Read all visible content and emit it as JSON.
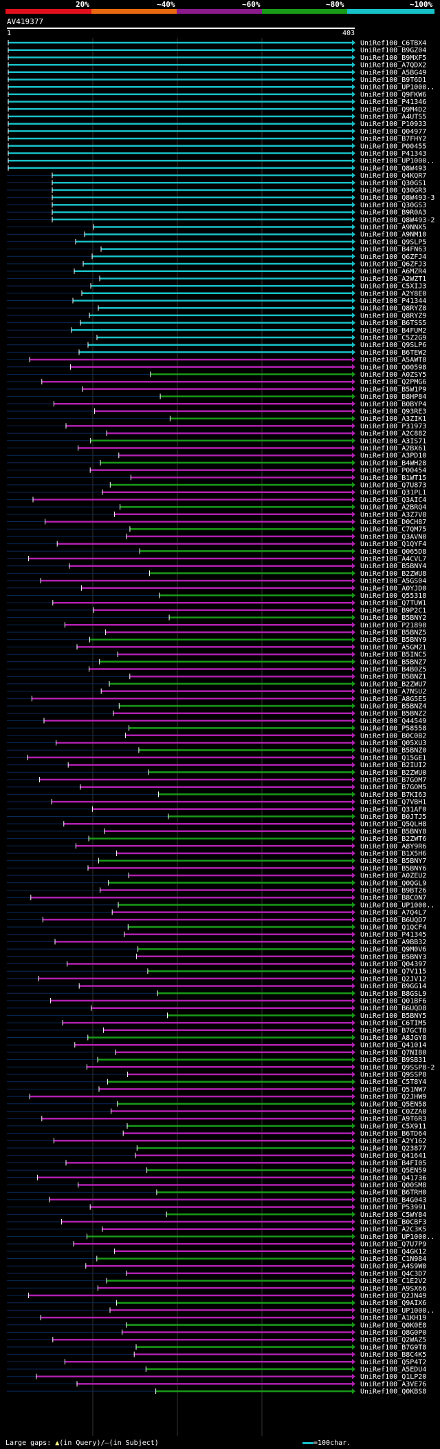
{
  "query": {
    "id": "AV419377",
    "start": "1",
    "end": "403"
  },
  "legend": {
    "labels": [
      "20%",
      "~40%",
      "~60%",
      "~80%",
      "~100%"
    ],
    "colors": [
      "#e0101c",
      "#e86810",
      "#8b1a8b",
      "#189a18",
      "#18c0c8"
    ]
  },
  "footer": {
    "large_gaps": "Large gaps: ",
    "in_query": "(in Query)/",
    "dash": "—",
    "in_subject": "(in Subject)",
    "scale": "=100char."
  },
  "hits": [
    "UniRef100_C6TBX4",
    "UniRef100_B9GZ04",
    "UniRef100_B9MXF5",
    "UniRef100_A7QDX2",
    "UniRef100_A5BG49",
    "UniRef100_B9T6D1",
    "UniRef100_UP1000..",
    "UniRef100_Q9FKW6",
    "UniRef100_P41346",
    "UniRef100_Q9M4D2",
    "UniRef100_A4UTS5",
    "UniRef100_P10933",
    "UniRef100_Q04977",
    "UniRef100_B7FHY2",
    "UniRef100_P00455",
    "UniRef100_P41343",
    "UniRef100_UP1000..",
    "UniRef100_Q8W493",
    "UniRef100_Q4KQR7",
    "UniRef100_Q30GS1",
    "UniRef100_Q30GR3",
    "UniRef100_Q8W493-3",
    "UniRef100_Q30GS3",
    "UniRef100_B9R0A3",
    "UniRef100_Q8W493-2",
    "UniRef100_A9NNX5",
    "UniRef100_A9NM10",
    "UniRef100_Q9SLP5",
    "UniRef100_B4FN63",
    "UniRef100_Q6ZFJ4",
    "UniRef100_Q6ZFJ3",
    "UniRef100_A6MZR4",
    "UniRef100_A2WZT1",
    "UniRef100_C5XIJ3",
    "UniRef100_A2Y8E0",
    "UniRef100_P41344",
    "UniRef100_Q8RYZ8",
    "UniRef100_Q8RYZ9",
    "UniRef100_B6TSS5",
    "UniRef100_B4FUM2",
    "UniRef100_C5Z2G9",
    "UniRef100_Q9SLP6",
    "UniRef100_B6TEW2",
    "UniRef100_A5AWT8",
    "UniRef100_Q00598",
    "UniRef100_A0ZSY5",
    "UniRef100_Q2PMG6",
    "UniRef100_B5W1P9",
    "UniRef100_B8HP84",
    "UniRef100_B0BYP4",
    "UniRef100_Q93RE3",
    "UniRef100_A3ZIK1",
    "UniRef100_P31973",
    "UniRef100_A2C882",
    "UniRef100_A3IS71",
    "UniRef100_A2BX61",
    "UniRef100_A3PD10",
    "UniRef100_B4WH28",
    "UniRef100_P00454",
    "UniRef100_B1WT15",
    "UniRef100_Q7U873",
    "UniRef100_Q31PL1",
    "UniRef100_Q3AIC4",
    "UniRef100_A2BRQ4",
    "UniRef100_A3Z7V8",
    "UniRef100_D0CH87",
    "UniRef100_C7QM75",
    "UniRef100_Q3AVN0",
    "UniRef100_Q1QYF4",
    "UniRef100_Q065D8",
    "UniRef100_A4CVL7",
    "UniRef100_B5BNY4",
    "UniRef100_B2ZWU8",
    "UniRef100_A5GS04",
    "UniRef100_A0YJD0",
    "UniRef100_Q55318",
    "UniRef100_Q7TUW1",
    "UniRef100_B9P2C1",
    "UniRef100_B5BNY2",
    "UniRef100_P21890",
    "UniRef100_B5BNZ5",
    "UniRef100_B5BNY9",
    "UniRef100_A5GM21",
    "UniRef100_B5INC5",
    "UniRef100_B5BNZ7",
    "UniRef100_B4B0Z5",
    "UniRef100_B5BNZ1",
    "UniRef100_B2ZWU7",
    "UniRef100_A7NSU2",
    "UniRef100_A8G5E5",
    "UniRef100_B5BNZ4",
    "UniRef100_B5BNZ2",
    "UniRef100_Q44549",
    "UniRef100_P58558",
    "UniRef100_B0C0B2",
    "UniRef100_Q05XU3",
    "UniRef100_B5BNZ0",
    "UniRef100_Q15GE1",
    "UniRef100_B2IUI2",
    "UniRef100_B2ZWU0",
    "UniRef100_B7GOM7",
    "UniRef100_B7GOM5",
    "UniRef100_B7KI63",
    "UniRef100_Q7VBH1",
    "UniRef100_Q31AF0",
    "UniRef100_B0JTJ5",
    "UniRef100_Q5QLH8",
    "UniRef100_B5BNY8",
    "UniRef100_B2ZWT6",
    "UniRef100_A8Y9R6",
    "UniRef100_B1X5H6",
    "UniRef100_B5BNY7",
    "UniRef100_B5BNY6",
    "UniRef100_A0ZEU2",
    "UniRef100_Q0QGL9",
    "UniRef100_B9BT26",
    "UniRef100_B8CON7",
    "UniRef100_UP1000..",
    "UniRef100_A7Q4L7",
    "UniRef100_B6UQD7",
    "UniRef100_Q1QCF4",
    "UniRef100_P41345",
    "UniRef100_A9BB32",
    "UniRef100_Q9M0V6",
    "UniRef100_B5BNY3",
    "UniRef100_Q04397",
    "UniRef100_Q7V115",
    "UniRef100_Q2JV12",
    "UniRef100_B9GG14",
    "UniRef100_B8GSL9",
    "UniRef100_Q01BF6",
    "UniRef100_B6UQD8",
    "UniRef100_B5BNY5",
    "UniRef100_C6TIM5",
    "UniRef100_B7GCT8",
    "UniRef100_A8JGY8",
    "UniRef100_Q41014",
    "UniRef100_Q7NI80",
    "UniRef100_B9SB31",
    "UniRef100_Q9SSP8-2",
    "UniRef100_Q9SSP8",
    "UniRef100_C5T8Y4",
    "UniRef100_Q51NW7",
    "UniRef100_Q2JHW9",
    "UniRef100_Q5EN58",
    "UniRef100_C0ZZA0",
    "UniRef100_A9T6R3",
    "UniRef100_C5X911",
    "UniRef100_B6TD64",
    "UniRef100_A2Y162",
    "UniRef100_Q23877",
    "UniRef100_Q41641",
    "UniRef100_B4FI05",
    "UniRef100_Q5EN59",
    "UniRef100_Q41736",
    "UniRef100_Q00SM8",
    "UniRef100_B6TRH0",
    "UniRef100_B4G043",
    "UniRef100_P53991",
    "UniRef100_C5WY84",
    "UniRef100_B0CBF3",
    "UniRef100_A2C3K5",
    "UniRef100_UP1000..",
    "UniRef100_Q7U7P9",
    "UniRef100_Q4GK12",
    "UniRef100_C1N984",
    "UniRef100_A4S9W0",
    "UniRef100_Q4C3D7",
    "UniRef100_C1E2V2",
    "UniRef100_A9SX66",
    "UniRef100_Q2JN49",
    "UniRef100_Q9AIX6",
    "UniRef100_UP1000..",
    "UniRef100_A1KH19",
    "UniRef100_Q0K0E8",
    "UniRef100_Q8G0P0",
    "UniRef100_Q2WAZ5",
    "UniRef100_B7G9T8",
    "UniRef100_B8C4K5",
    "UniRef100_Q5P4T2",
    "UniRef100_A5EDU4",
    "UniRef100_Q1LP20",
    "UniRef100_A3VE76",
    "UniRef100_Q0KBS8"
  ]
}
